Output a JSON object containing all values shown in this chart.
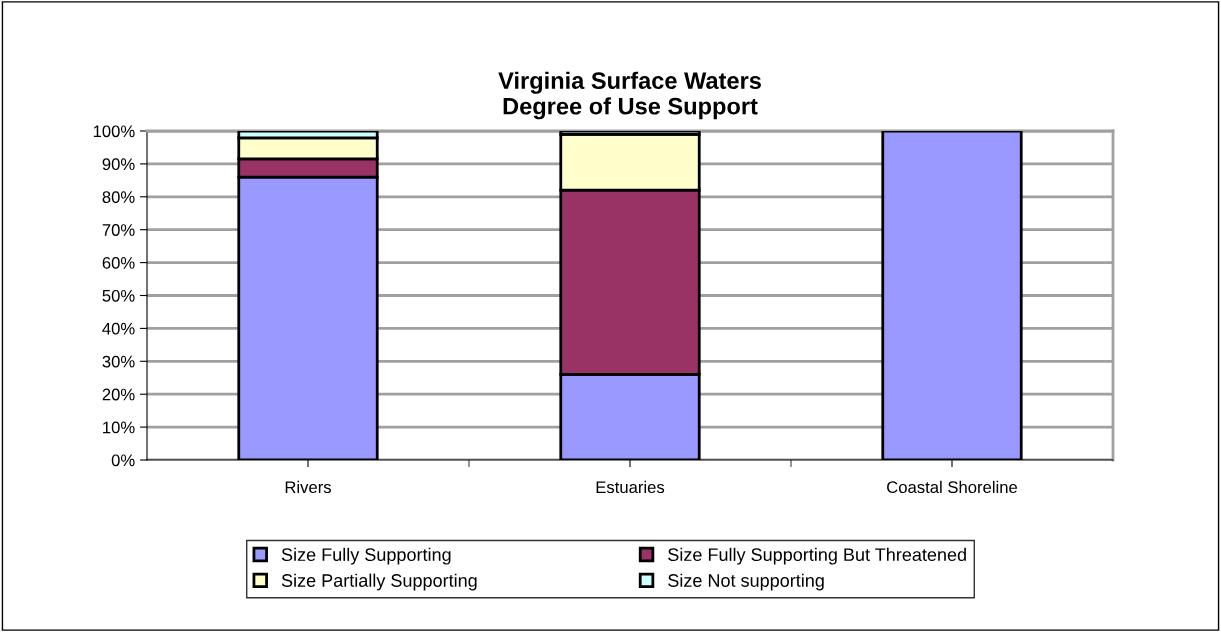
{
  "chart_data": {
    "type": "bar",
    "stacked": true,
    "title": "Virginia Surface Waters\nDegree of Use Support",
    "categories": [
      "Rivers",
      "Estuaries",
      "Coastal Shoreline"
    ],
    "series": [
      {
        "name": "Size Fully Supporting",
        "color": "#9999ff",
        "values": [
          86,
          26,
          100
        ]
      },
      {
        "name": "Size Fully Supporting But Threatened",
        "color": "#993366",
        "values": [
          5.5,
          56,
          null
        ]
      },
      {
        "name": "Size Partially Supporting",
        "color": "#ffffcc",
        "values": [
          6.4,
          17,
          null
        ]
      },
      {
        "name": "Size Not supporting",
        "color": "#ccffff",
        "values": [
          2.1,
          1,
          null
        ]
      }
    ],
    "ylim": [
      0,
      100
    ],
    "yticks": [
      {
        "value": 0,
        "label": "0%"
      },
      {
        "value": 10,
        "label": "10%"
      },
      {
        "value": 20,
        "label": "20%"
      },
      {
        "value": 30,
        "label": "30%"
      },
      {
        "value": 40,
        "label": "40%"
      },
      {
        "value": 50,
        "label": "50%"
      },
      {
        "value": 60,
        "label": "60%"
      },
      {
        "value": 70,
        "label": "70%"
      },
      {
        "value": 80,
        "label": "80%"
      },
      {
        "value": 90,
        "label": "90%"
      },
      {
        "value": 100,
        "label": "100%"
      }
    ],
    "grid": "y",
    "legend": "bottom"
  }
}
